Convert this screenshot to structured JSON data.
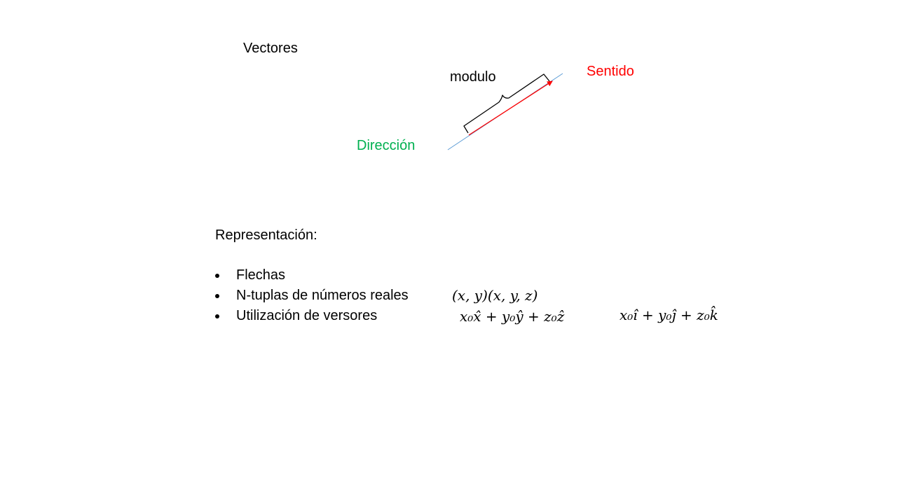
{
  "title": "Vectores",
  "diagram": {
    "modulo_label": "modulo",
    "sentido_label": "Sentido",
    "direccion_label": "Dirección",
    "colors": {
      "sentido": "#ff0000",
      "direccion": "#00b050",
      "line": "#5b9bd5",
      "arrow": "#ff0000"
    }
  },
  "representation": {
    "heading": "Representación:",
    "bullets": [
      {
        "label": "Flechas"
      },
      {
        "label": "N-tuplas de números reales",
        "math": "(x, y)(x, y, z)"
      },
      {
        "label": "Utilización de versores",
        "math": "x₀x̂ + y₀ŷ + z₀ẑ",
        "math2": "x₀ı̂ + y₀ȷ̂ + z₀k̂"
      }
    ]
  }
}
